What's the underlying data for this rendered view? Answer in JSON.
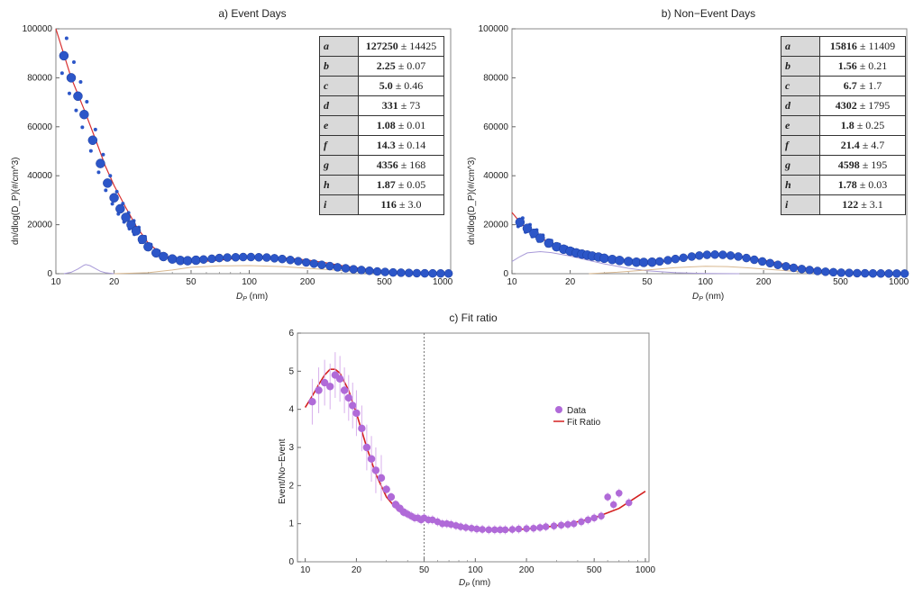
{
  "panels": [
    {
      "id": "event",
      "title": "a) Event Days",
      "ylabel": "dn/dlog(D_P)(#/cm^3)",
      "xlabel_main": "D",
      "xlabel_sub": "P",
      "xlabel_unit": " (nm)",
      "ytick_labels": [
        "0",
        "20000",
        "40000",
        "60000",
        "80000",
        "100000"
      ],
      "xtick_labels": [
        "10",
        "20",
        "50",
        "100",
        "200",
        "500",
        "1000"
      ],
      "params": [
        {
          "key": "a",
          "value": "127250",
          "err": " ± 14425"
        },
        {
          "key": "b",
          "value": "2.25",
          "err": " ± 0.07"
        },
        {
          "key": "c",
          "value": "5.0",
          "err": " ± 0.46"
        },
        {
          "key": "d",
          "value": "331",
          "err": " ± 73"
        },
        {
          "key": "e",
          "value": "1.08",
          "err": " ± 0.01"
        },
        {
          "key": "f",
          "value": "14.3",
          "err": " ± 0.14"
        },
        {
          "key": "g",
          "value": "4356",
          "err": " ± 168"
        },
        {
          "key": "h",
          "value": "1.87",
          "err": " ± 0.05"
        },
        {
          "key": "i",
          "value": "116",
          "err": " ± 3.0"
        }
      ]
    },
    {
      "id": "nonevent",
      "title": "b) Non−Event Days",
      "ylabel": "dn/dlog(D_P)(#/cm^3)",
      "xlabel_main": "D",
      "xlabel_sub": "P",
      "xlabel_unit": " (nm)",
      "ytick_labels": [
        "0",
        "20000",
        "40000",
        "60000",
        "80000",
        "100000"
      ],
      "xtick_labels": [
        "10",
        "20",
        "50",
        "100",
        "200",
        "500",
        "1000"
      ],
      "params": [
        {
          "key": "a",
          "value": "15816",
          "err": " ± 11409"
        },
        {
          "key": "b",
          "value": "1.56",
          "err": " ± 0.21"
        },
        {
          "key": "c",
          "value": "6.7",
          "err": " ± 1.7"
        },
        {
          "key": "d",
          "value": "4302",
          "err": " ± 1795"
        },
        {
          "key": "e",
          "value": "1.8",
          "err": " ± 0.25"
        },
        {
          "key": "f",
          "value": "21.4",
          "err": " ± 4.7"
        },
        {
          "key": "g",
          "value": "4598",
          "err": " ± 195"
        },
        {
          "key": "h",
          "value": "1.78",
          "err": " ± 0.03"
        },
        {
          "key": "i",
          "value": "122",
          "err": " ± 3.1"
        }
      ]
    },
    {
      "id": "ratio",
      "title": "c) Fit ratio",
      "ylabel": "Event/No−Event",
      "xlabel_main": "D",
      "xlabel_sub": "P",
      "xlabel_unit": " (nm)",
      "ytick_labels": [
        "0",
        "1",
        "2",
        "3",
        "4",
        "5",
        "6"
      ],
      "xtick_labels": [
        "10",
        "20",
        "50",
        "100",
        "200",
        "500",
        "1000"
      ],
      "legend": [
        "Data",
        "Fit Ratio"
      ]
    }
  ],
  "colors": {
    "points_blue": "#2c56c8",
    "fit_red": "#d83030",
    "component_violet": "#a89ad8",
    "component_tan": "#d8b890",
    "points_purple": "#b06ad8",
    "ratio_red": "#d42020",
    "errbar_purple": "#d8b0ec"
  },
  "chart_data": [
    {
      "type": "scatter",
      "title": "a) Event Days",
      "xlabel": "D_P (nm)",
      "ylabel": "dn/dlog(D_P)(#/cm^3)",
      "xscale": "log",
      "xlim": [
        10,
        1100
      ],
      "ylim": [
        0,
        100000
      ],
      "series": [
        {
          "name": "data",
          "x": [
            11,
            12,
            13,
            14,
            15.5,
            17,
            18.5,
            20,
            21.5,
            23,
            24.5,
            26,
            28,
            30,
            33,
            36,
            40,
            44,
            48,
            53,
            58,
            64,
            70,
            77,
            85,
            93,
            102,
            112,
            123,
            135,
            148,
            163,
            179,
            197,
            216,
            237,
            261,
            286,
            315,
            346,
            380,
            418,
            459,
            504,
            554,
            609,
            669,
            735,
            808,
            888,
            976,
            1072
          ],
          "y": [
            89000,
            80000,
            72500,
            65000,
            54500,
            45000,
            37000,
            31000,
            26500,
            23000,
            20000,
            17500,
            14000,
            11000,
            8500,
            7000,
            6000,
            5400,
            5300,
            5500,
            5800,
            6100,
            6400,
            6600,
            6700,
            6800,
            6800,
            6700,
            6600,
            6300,
            6000,
            5600,
            5100,
            4600,
            4100,
            3600,
            3100,
            2600,
            2200,
            1800,
            1500,
            1200,
            900,
            700,
            500,
            400,
            300,
            200,
            150,
            120,
            100,
            80
          ]
        },
        {
          "name": "fit",
          "x": [
            10,
            11,
            12,
            14,
            16,
            18,
            20,
            23,
            26,
            30,
            35,
            40,
            45,
            50,
            60,
            70,
            80,
            90,
            100,
            120,
            150,
            200,
            250,
            300,
            400,
            500,
            700,
            1000,
            1100
          ],
          "y": [
            100000,
            89500,
            80000,
            67000,
            55000,
            44000,
            36000,
            27000,
            19500,
            12500,
            8200,
            6100,
            5300,
            5000,
            5100,
            5500,
            6000,
            6400,
            6700,
            6800,
            6500,
            5600,
            4400,
            3300,
            1900,
            1000,
            350,
            80,
            50
          ]
        },
        {
          "name": "component_nucleation",
          "x": [
            11,
            12,
            13,
            14,
            14.3,
            15,
            16,
            17,
            18,
            20
          ],
          "y": [
            0,
            600,
            1900,
            3500,
            3700,
            3300,
            2100,
            1000,
            400,
            0
          ]
        },
        {
          "name": "component_accumulation",
          "x": [
            20,
            30,
            40,
            50,
            70,
            100,
            150,
            200,
            300,
            400,
            600,
            1000
          ],
          "y": [
            0,
            400,
            1500,
            2600,
            3200,
            3300,
            2900,
            2200,
            1300,
            700,
            200,
            0
          ]
        }
      ]
    },
    {
      "type": "scatter",
      "title": "b) Non−Event Days",
      "xlabel": "D_P (nm)",
      "ylabel": "dn/dlog(D_P)(#/cm^3)",
      "xscale": "log",
      "xlim": [
        10,
        1100
      ],
      "ylim": [
        0,
        100000
      ],
      "series": [
        {
          "name": "data",
          "x": [
            11,
            12,
            13,
            14,
            15.5,
            17,
            18.5,
            20,
            21.5,
            23,
            24.5,
            26,
            28,
            30,
            33,
            36,
            40,
            44,
            48,
            53,
            58,
            64,
            70,
            77,
            85,
            93,
            102,
            112,
            123,
            135,
            148,
            163,
            179,
            197,
            216,
            237,
            261,
            286,
            315,
            346,
            380,
            418,
            459,
            504,
            554,
            609,
            669,
            735,
            808,
            888,
            976,
            1072
          ],
          "y": [
            21000,
            18500,
            16500,
            14500,
            12500,
            11000,
            10000,
            9200,
            8500,
            8000,
            7600,
            7200,
            6800,
            6300,
            5800,
            5400,
            5000,
            4700,
            4600,
            4700,
            5000,
            5500,
            6000,
            6500,
            7000,
            7400,
            7700,
            7800,
            7700,
            7400,
            7000,
            6400,
            5700,
            5000,
            4300,
            3600,
            3000,
            2400,
            1900,
            1500,
            1100,
            800,
            600,
            400,
            300,
            200,
            150,
            100,
            80,
            60,
            50,
            40
          ]
        },
        {
          "name": "fit",
          "x": [
            10,
            11,
            12,
            13,
            14,
            16,
            18,
            20,
            23,
            26,
            30,
            35,
            40,
            45,
            50,
            60,
            70,
            80,
            100,
            120,
            150,
            200,
            250,
            300,
            400,
            500,
            700,
            1000,
            1100
          ],
          "y": [
            25000,
            21000,
            18000,
            16000,
            14500,
            12500,
            11000,
            9800,
            8600,
            7800,
            6900,
            6000,
            5300,
            4800,
            4600,
            4800,
            5600,
            6500,
            7600,
            7800,
            7200,
            5500,
            4000,
            2800,
            1400,
            700,
            200,
            60,
            40
          ]
        },
        {
          "name": "component_nucleation",
          "x": [
            10,
            11,
            12,
            14,
            16,
            20,
            25,
            30,
            40,
            50,
            70,
            100,
            150
          ],
          "y": [
            5000,
            7000,
            8500,
            9000,
            8600,
            7200,
            5400,
            4000,
            2200,
            1200,
            400,
            100,
            0
          ]
        },
        {
          "name": "component_accumulation",
          "x": [
            25,
            35,
            50,
            70,
            100,
            130,
            160,
            200,
            300,
            400,
            600
          ],
          "y": [
            0,
            600,
            1500,
            2500,
            3000,
            2900,
            2500,
            1900,
            900,
            400,
            0
          ]
        }
      ]
    },
    {
      "type": "scatter",
      "title": "c) Fit ratio",
      "xlabel": "D_P (nm)",
      "ylabel": "Event/No−Event",
      "xscale": "log",
      "xlim": [
        9,
        1050
      ],
      "ylim": [
        0,
        6
      ],
      "vline": 50,
      "series": [
        {
          "name": "Data",
          "x": [
            11,
            12,
            13,
            14,
            15,
            16,
            17,
            18,
            19,
            20,
            21.5,
            23,
            24.5,
            26,
            28,
            30,
            32,
            34,
            36,
            38,
            40,
            42,
            44,
            46,
            48,
            50,
            53,
            56,
            60,
            64,
            68,
            72,
            77,
            82,
            88,
            95,
            102,
            110,
            120,
            130,
            140,
            150,
            165,
            180,
            200,
            220,
            240,
            260,
            290,
            320,
            350,
            380,
            420,
            460,
            500,
            550,
            600,
            650,
            700,
            800
          ],
          "y": [
            4.2,
            4.5,
            4.7,
            4.6,
            4.9,
            4.8,
            4.5,
            4.3,
            4.1,
            3.9,
            3.5,
            3.0,
            2.7,
            2.4,
            2.2,
            1.9,
            1.7,
            1.5,
            1.4,
            1.3,
            1.25,
            1.2,
            1.15,
            1.15,
            1.1,
            1.15,
            1.1,
            1.1,
            1.05,
            1.0,
            1.0,
            0.98,
            0.95,
            0.92,
            0.9,
            0.88,
            0.86,
            0.85,
            0.84,
            0.84,
            0.84,
            0.84,
            0.85,
            0.86,
            0.87,
            0.88,
            0.9,
            0.92,
            0.94,
            0.96,
            0.98,
            1.0,
            1.05,
            1.1,
            1.15,
            1.2,
            1.7,
            1.5,
            1.8,
            1.55
          ]
        },
        {
          "name": "Fit Ratio",
          "x": [
            10,
            11,
            12,
            13,
            14,
            15,
            16,
            18,
            20,
            23,
            26,
            30,
            35,
            40,
            45,
            50,
            60,
            70,
            80,
            100,
            120,
            150,
            200,
            250,
            300,
            400,
            500,
            700,
            1000
          ],
          "y": [
            4.05,
            4.35,
            4.65,
            4.9,
            5.05,
            5.05,
            4.95,
            4.5,
            3.9,
            3.0,
            2.3,
            1.7,
            1.35,
            1.2,
            1.15,
            1.12,
            1.05,
            0.98,
            0.93,
            0.86,
            0.83,
            0.83,
            0.86,
            0.9,
            0.95,
            1.05,
            1.15,
            1.4,
            1.85
          ]
        }
      ]
    }
  ]
}
